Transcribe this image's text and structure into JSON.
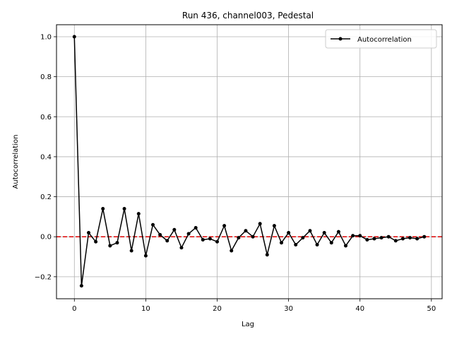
{
  "chart_data": {
    "type": "line",
    "title": "Run 436, channel003, Pedestal",
    "xlabel": "Lag",
    "ylabel": "Autocorrelation",
    "xlim": [
      -2.5,
      51.5
    ],
    "ylim": [
      -0.31,
      1.06
    ],
    "xticks": [
      0,
      10,
      20,
      30,
      40,
      50
    ],
    "yticks": [
      -0.2,
      0.0,
      0.2,
      0.4,
      0.6,
      0.8,
      1.0
    ],
    "xtick_labels": [
      "0",
      "10",
      "20",
      "30",
      "40",
      "50"
    ],
    "ytick_labels": [
      "−0.2",
      "0.0",
      "0.2",
      "0.4",
      "0.6",
      "0.8",
      "1.0"
    ],
    "grid": true,
    "legend_position": "top-right",
    "series": [
      {
        "name": "Autocorrelation",
        "color": "#000000",
        "marker": "circle",
        "x": [
          0,
          1,
          2,
          3,
          4,
          5,
          6,
          7,
          8,
          9,
          10,
          11,
          12,
          13,
          14,
          15,
          16,
          17,
          18,
          19,
          20,
          21,
          22,
          23,
          24,
          25,
          26,
          27,
          28,
          29,
          30,
          31,
          32,
          33,
          34,
          35,
          36,
          37,
          38,
          39,
          40,
          41,
          42,
          43,
          44,
          45,
          46,
          47,
          48,
          49
        ],
        "values": [
          1.0,
          -0.245,
          0.02,
          -0.025,
          0.14,
          -0.045,
          -0.03,
          0.14,
          -0.07,
          0.115,
          -0.095,
          0.06,
          0.01,
          -0.02,
          0.035,
          -0.055,
          0.015,
          0.045,
          -0.015,
          -0.01,
          -0.025,
          0.055,
          -0.07,
          -0.005,
          0.03,
          0.0,
          0.065,
          -0.09,
          0.055,
          -0.03,
          0.02,
          -0.04,
          -0.005,
          0.03,
          -0.04,
          0.02,
          -0.03,
          0.025,
          -0.045,
          0.005,
          0.005,
          -0.015,
          -0.01,
          -0.005,
          0.0,
          -0.02,
          -0.01,
          -0.005,
          -0.01,
          0.0
        ]
      }
    ],
    "reference_line": {
      "y": 0,
      "color": "#dd0000",
      "style": "dashed"
    }
  }
}
